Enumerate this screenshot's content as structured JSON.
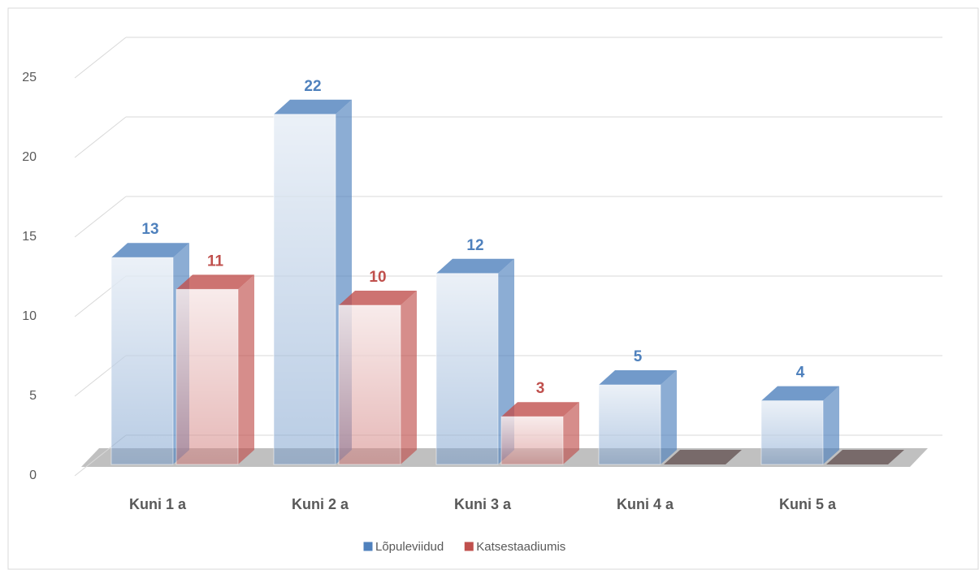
{
  "chart_data": {
    "type": "bar3d",
    "categories": [
      "Kuni 1 a",
      "Kuni 2 a",
      "Kuni 3 a",
      "Kuni 4 a",
      "Kuni 5 a"
    ],
    "series": [
      {
        "name": "Lõpuleviidud",
        "color": "#4f81bd",
        "values": [
          13,
          22,
          12,
          5,
          4
        ]
      },
      {
        "name": "Katsestaadiumis",
        "color": "#c0504d",
        "values": [
          11,
          10,
          3,
          0,
          0
        ],
        "value_labels": [
          "11",
          "10",
          "3",
          null,
          null
        ]
      }
    ],
    "ylim": [
      0,
      25
    ],
    "yticks": [
      0,
      5,
      10,
      15,
      20,
      25
    ],
    "grid": true,
    "legend": "bottom"
  }
}
